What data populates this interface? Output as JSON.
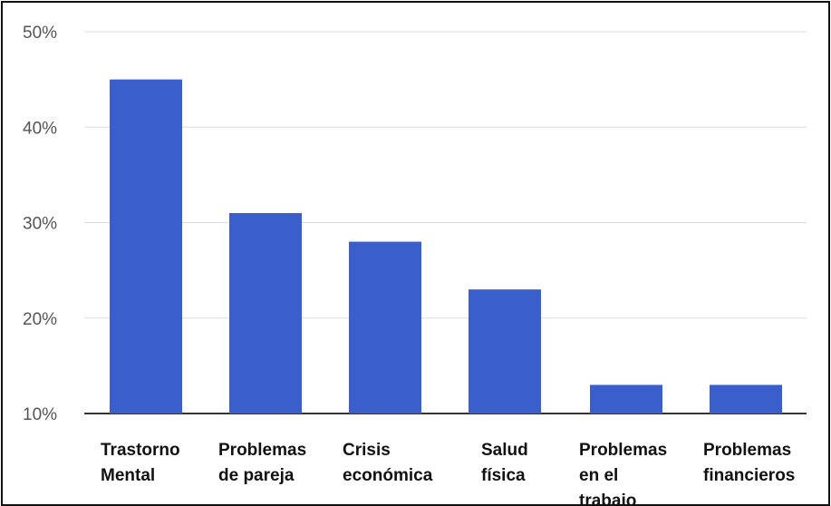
{
  "chart_data": {
    "type": "bar",
    "categories": [
      [
        "Trastorno",
        "Mental"
      ],
      [
        "Problemas",
        "de pareja"
      ],
      [
        "Crisis",
        "económica"
      ],
      [
        "Salud",
        "física"
      ],
      [
        "Problemas",
        "en el",
        "trabajo"
      ],
      [
        "Problemas",
        "financieros"
      ]
    ],
    "values": [
      45,
      31,
      28,
      23,
      13,
      13
    ],
    "yticks": [
      "10%",
      "20%",
      "30%",
      "40%",
      "50%"
    ],
    "ylim": [
      10,
      50
    ],
    "ytick_values": [
      10,
      20,
      30,
      40,
      50
    ],
    "grid": true,
    "colors": {
      "bar": "#3a5fcd",
      "grid": "#dddddd",
      "axis": "#333333"
    }
  }
}
